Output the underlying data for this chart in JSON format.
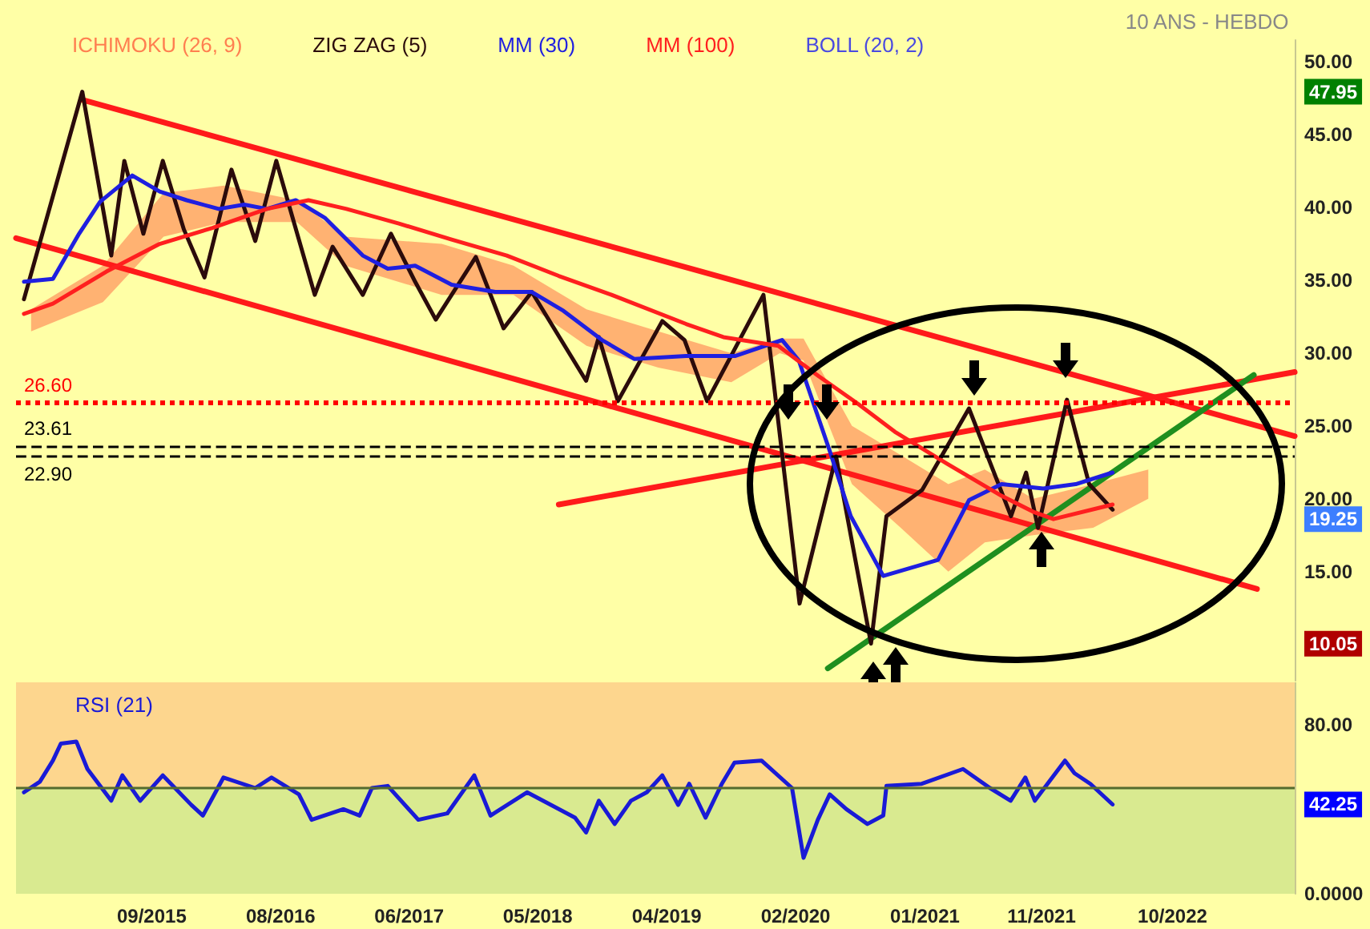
{
  "chart_data": [
    {
      "type": "line",
      "subtitle": "10 ANS - HEBDO",
      "marker": "none",
      "legend": "top left",
      "tick_labels": "y",
      "xlim": [
        "2014-10-08",
        "2023-08-05"
      ],
      "ylim": [
        7.5,
        51.5
      ],
      "yticks": [
        {
          "value": 10.05,
          "label": "10.05"
        },
        {
          "value": 15,
          "label": "15.00"
        },
        {
          "value": 19.25,
          "label": "19.25"
        },
        {
          "value": 20,
          "label": "20.00"
        },
        {
          "value": 25,
          "label": "25.00"
        },
        {
          "value": 30,
          "label": "30.00"
        },
        {
          "value": 35,
          "label": "35.00"
        },
        {
          "value": 40,
          "label": "40.00"
        },
        {
          "value": 45,
          "label": "45.00"
        },
        {
          "value": 47.95,
          "label": "47.95"
        },
        {
          "value": 50,
          "label": "50.00"
        }
      ],
      "ref_lines": [
        {
          "axis": "y",
          "value": 26.6,
          "label": "26.60",
          "color": "#ff0000",
          "line_style": "dotted"
        },
        {
          "axis": "y",
          "value": 23.61,
          "label": "23.61",
          "color": "#000000",
          "line_style": "dashed"
        },
        {
          "axis": "y",
          "value": 22.9,
          "label": "22.90",
          "color": "#000000",
          "line_style": "dashed"
        }
      ],
      "series": [
        {
          "name": "ICHIMOKU (26, 9)",
          "color": "#ff7f50",
          "x": [
            "2014-11-15",
            "2015-05-15",
            "2015-10-15",
            "2016-03-15",
            "2016-09-15",
            "2017-01-15",
            "2017-09-15",
            "2018-03-15",
            "2018-09-15",
            "2019-03-15",
            "2019-09-15",
            "2020-01-15",
            "2020-03-15",
            "2020-07-15",
            "2020-11-15",
            "2021-03-15",
            "2021-06-15",
            "2021-10-15",
            "2022-03-15",
            "2022-08-01"
          ],
          "values": [
            null,
            null,
            null,
            null,
            null,
            null,
            null,
            null,
            null,
            null,
            null,
            null,
            null,
            null,
            null,
            null,
            null,
            null,
            null,
            null
          ],
          "lower": [
            31.5,
            33.5,
            38,
            39,
            39,
            36,
            34,
            34,
            30.5,
            29,
            28,
            30,
            29.5,
            21,
            18,
            15,
            17,
            17.5,
            18,
            20
          ],
          "upper": [
            33,
            36,
            41,
            41.5,
            40.5,
            38,
            37.5,
            36,
            33,
            31.5,
            30,
            31,
            31,
            25,
            23,
            21,
            22,
            20,
            21,
            22
          ]
        },
        {
          "name": "ZIG ZAG (5)",
          "color": "#2b0b0b",
          "x": [
            "2014-10-28",
            "2015-03-24",
            "2015-06-05",
            "2015-07-08",
            "2015-08-25",
            "2015-10-13",
            "2015-12-05",
            "2016-01-26",
            "2016-04-03",
            "2016-06-02",
            "2016-07-25",
            "2016-10-30",
            "2016-12-14",
            "2017-02-28",
            "2017-05-10",
            "2017-07-10",
            "2017-08-31",
            "2017-12-10",
            "2018-02-18",
            "2018-04-30",
            "2018-09-14",
            "2018-10-16",
            "2018-12-03",
            "2019-03-25",
            "2019-05-20",
            "2019-07-16",
            "2019-12-05",
            "2020-03-05",
            "2020-06-05",
            "2020-09-01",
            "2020-10-10",
            "2021-01-08",
            "2021-05-06",
            "2021-08-20",
            "2021-09-27",
            "2021-10-27",
            "2022-01-08",
            "2022-03-05",
            "2022-05-03"
          ],
          "values": [
            33.7,
            47.95,
            36.7,
            43.2,
            38.2,
            43.2,
            38.5,
            35.2,
            42.6,
            37.7,
            43.2,
            34.0,
            37.3,
            34.0,
            38.2,
            34.9,
            32.3,
            36.6,
            31.7,
            34.2,
            28.1,
            31.1,
            26.7,
            32.2,
            30.9,
            26.7,
            34.0,
            12.8,
            22.9,
            10.05,
            18.8,
            20.6,
            26.2,
            18.8,
            21.8,
            18.0,
            26.8,
            21.0,
            19.25
          ]
        },
        {
          "name": "MM (30)",
          "color": "#1f1fe0",
          "x": [
            "2014-10-28",
            "2015-01-09",
            "2015-03-16",
            "2015-05-08",
            "2015-07-28",
            "2015-10-05",
            "2015-12-12",
            "2016-03-02",
            "2016-05-05",
            "2016-07-01",
            "2016-09-12",
            "2016-11-24",
            "2017-02-28",
            "2017-05-02",
            "2017-07-10",
            "2017-10-10",
            "2018-01-28",
            "2018-04-30",
            "2018-07-19",
            "2018-10-24",
            "2019-01-13",
            "2019-05-24",
            "2019-09-24",
            "2020-01-21",
            "2020-03-03",
            "2020-05-21",
            "2020-07-12",
            "2020-10-02",
            "2021-02-17",
            "2021-05-06",
            "2021-07-27",
            "2021-11-09",
            "2022-01-30",
            "2022-05-03"
          ],
          "values": [
            34.9,
            35.1,
            38.2,
            40.4,
            42.2,
            41.1,
            40.5,
            39.9,
            40.2,
            39.9,
            40.5,
            39.3,
            36.7,
            35.8,
            36.0,
            34.7,
            34.2,
            34.2,
            32.9,
            30.9,
            29.6,
            29.8,
            29.8,
            30.9,
            29.5,
            23.2,
            18.8,
            14.7,
            15.8,
            19.9,
            21.0,
            20.7,
            21.0,
            21.8
          ]
        },
        {
          "name": "MM (100)",
          "color": "#ff1f1f",
          "x": [
            "2014-10-28",
            "2015-01-09",
            "2015-05-24",
            "2015-10-05",
            "2016-02-15",
            "2016-07-01",
            "2016-10-14",
            "2017-01-18",
            "2017-05-30",
            "2017-10-10",
            "2018-02-26",
            "2018-07-07",
            "2018-11-17",
            "2019-05-24",
            "2019-08-26",
            "2020-01-11",
            "2020-04-23",
            "2020-07-31",
            "2020-10-31",
            "2021-03-12",
            "2021-07-27",
            "2021-10-15",
            "2021-12-05",
            "2022-05-03"
          ],
          "values": [
            32.7,
            33.4,
            35.6,
            37.5,
            38.6,
            39.9,
            40.5,
            39.9,
            38.9,
            37.8,
            36.7,
            35.3,
            34.0,
            32.0,
            31.1,
            30.5,
            28.4,
            26.5,
            24.6,
            22.4,
            20.2,
            19.1,
            18.6,
            19.6
          ]
        },
        {
          "name": "BOLL (20, 2)",
          "color": "#4a4ae0"
        },
        {
          "color": "#ff1a1a",
          "x": [
            "2015-03-24",
            "2023-08-05"
          ],
          "values": [
            47.4,
            24.3
          ]
        },
        {
          "color": "#ff1a1a",
          "x": [
            "2014-10-08",
            "2023-05-02"
          ],
          "values": [
            37.9,
            13.8
          ]
        },
        {
          "color": "#ff1a1a",
          "x": [
            "2018-07-07",
            "2023-08-05"
          ],
          "values": [
            19.6,
            28.7
          ]
        },
        {
          "color": "#1f8f1f",
          "x": [
            "2020-05-15",
            "2023-04-24"
          ],
          "values": [
            8.35,
            28.5
          ]
        }
      ]
    },
    {
      "type": "line",
      "marker": "none",
      "legend": "top left",
      "xlim": [
        "2014-10-08",
        "2023-08-05"
      ],
      "xticks": [
        {
          "value": "2015-09-15",
          "label": "09/2015"
        },
        {
          "value": "2016-08-05",
          "label": "08/2016"
        },
        {
          "value": "2017-06-25",
          "label": "06/2017"
        },
        {
          "value": "2018-05-15",
          "label": "05/2018"
        },
        {
          "value": "2019-04-05",
          "label": "04/2019"
        },
        {
          "value": "2020-02-24",
          "label": "02/2020"
        },
        {
          "value": "2021-01-15",
          "label": "01/2021"
        },
        {
          "value": "2021-11-05",
          "label": "11/2021"
        },
        {
          "value": "2022-10-01",
          "label": "10/2022"
        }
      ],
      "ylim": [
        0,
        100
      ],
      "yticks": [
        {
          "value": 0,
          "label": "0.0000"
        },
        {
          "value": 42.25,
          "label": "42.25"
        },
        {
          "value": 80,
          "label": "80.00"
        }
      ],
      "bands": [
        {
          "axis": "y",
          "from": 50,
          "to": 100,
          "color": "#fdd68e"
        },
        {
          "axis": "y",
          "from": 0,
          "to": 50,
          "color": "#d9ea90"
        }
      ],
      "ref_lines": [
        {
          "axis": "y",
          "value": 50,
          "color": "#556b2f",
          "line_style": "solid"
        }
      ],
      "series": [
        {
          "name": "RSI (21)",
          "color": "#1a1ad6",
          "x": [
            "2014-10-28",
            "2014-12-07",
            "2015-01-09",
            "2015-01-29",
            "2015-03-09",
            "2015-04-06",
            "2015-06-05",
            "2015-07-03",
            "2015-08-17",
            "2015-10-13",
            "2015-12-24",
            "2016-01-22",
            "2016-03-14",
            "2016-06-02",
            "2016-07-13",
            "2016-09-20",
            "2016-10-22",
            "2017-01-10",
            "2017-02-20",
            "2017-03-23",
            "2017-05-02",
            "2017-07-18",
            "2017-09-29",
            "2017-12-06",
            "2018-01-16",
            "2018-04-18",
            "2018-08-17",
            "2018-09-14",
            "2018-10-16",
            "2018-11-25",
            "2019-01-05",
            "2019-02-14",
            "2019-03-25",
            "2019-05-04",
            "2019-06-01",
            "2019-07-12",
            "2019-08-22",
            "2019-09-23",
            "2019-11-30",
            "2020-02-15",
            "2020-03-15",
            "2020-04-20",
            "2020-05-20",
            "2020-07-01",
            "2020-08-23",
            "2020-10-02",
            "2020-10-10",
            "2021-01-07",
            "2021-04-21",
            "2021-06-28",
            "2021-08-19",
            "2021-09-25",
            "2021-10-19",
            "2022-01-03",
            "2022-01-27",
            "2022-03-08",
            "2022-05-03"
          ],
          "values": [
            48,
            53,
            63,
            71,
            72,
            59,
            44,
            56,
            44,
            56,
            42,
            37,
            55,
            50,
            55,
            47,
            35,
            40,
            37,
            50,
            51,
            35,
            38,
            56,
            37,
            48,
            36,
            29,
            44,
            33,
            44,
            48,
            56,
            42,
            52,
            36,
            52,
            62,
            63,
            50,
            17,
            35,
            47,
            40,
            33,
            37,
            51,
            52,
            59,
            50,
            44,
            55,
            44,
            63,
            57,
            52,
            42.25
          ]
        }
      ]
    }
  ]
}
